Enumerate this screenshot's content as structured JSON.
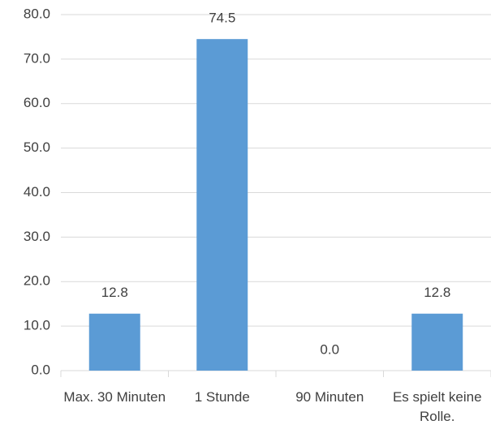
{
  "chart_data": {
    "type": "bar",
    "categories": [
      "Max. 30 Minuten",
      "1 Stunde",
      "90 Minuten",
      "Es spielt keine Rolle."
    ],
    "values": [
      12.8,
      74.5,
      0,
      12.8
    ],
    "value_labels": [
      "12.8",
      "74.5",
      "0.0",
      "12.8"
    ],
    "color": "#5b9bd5",
    "ylim": [
      0,
      80
    ],
    "yticks": [
      {
        "value": 0,
        "label": "0.0"
      },
      {
        "value": 10,
        "label": "10.0"
      },
      {
        "value": 20,
        "label": "20.0"
      },
      {
        "value": 30,
        "label": "30.0"
      },
      {
        "value": 40,
        "label": "40.0"
      },
      {
        "value": 50,
        "label": "50.0"
      },
      {
        "value": 60,
        "label": "60.0"
      },
      {
        "value": 70,
        "label": "70.0"
      },
      {
        "value": 80,
        "label": "80.0"
      }
    ],
    "grid": true
  }
}
